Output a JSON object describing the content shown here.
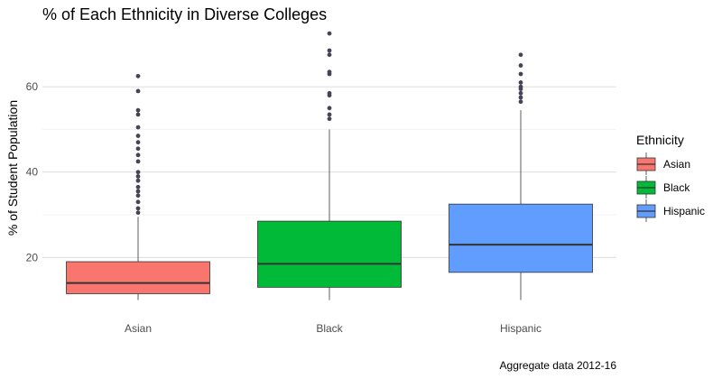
{
  "chart_data": {
    "type": "boxplot",
    "title": "% of Each Ethnicity in Diverse Colleges",
    "caption": "Aggregate data 2012-16",
    "xlabel": "",
    "ylabel": "% of Student Population",
    "ylim": [
      8,
      74
    ],
    "yticks": [
      20,
      40,
      60
    ],
    "grid": true,
    "legend_title": "Ethnicity",
    "legend_position": "right",
    "categories": [
      "Asian",
      "Black",
      "Hispanic"
    ],
    "series": [
      {
        "name": "Asian",
        "color": "#F8766D",
        "whisker_low": 10,
        "q1": 11.5,
        "median": 14,
        "q3": 19,
        "whisker_high": 29.5,
        "outliers": [
          30.5,
          31.5,
          33,
          34.5,
          35.5,
          36.5,
          38,
          39,
          40,
          42.5,
          44,
          45.5,
          47,
          48.5,
          50.5,
          53.5,
          54.5,
          59,
          62.5
        ]
      },
      {
        "name": "Black",
        "color": "#00BA38",
        "whisker_low": 10,
        "q1": 13,
        "median": 18.5,
        "q3": 28.5,
        "whisker_high": 50,
        "outliers": [
          52.5,
          53.5,
          55,
          58,
          58.5,
          63,
          63.5,
          67.5,
          68.5,
          72.5
        ]
      },
      {
        "name": "Hispanic",
        "color": "#619CFF",
        "whisker_low": 10,
        "q1": 16.5,
        "median": 23,
        "q3": 32.5,
        "whisker_high": 54.5,
        "outliers": [
          56.5,
          57.5,
          58.5,
          59.5,
          60,
          61,
          63,
          65,
          67.5
        ]
      }
    ]
  }
}
